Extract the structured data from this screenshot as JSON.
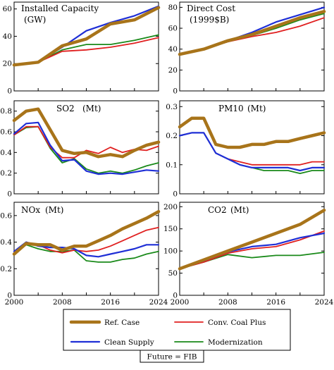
{
  "chart_data": [
    {
      "type": "line",
      "title": "Installed Capacity",
      "unit": "(GW)",
      "x": [
        2000,
        2004,
        2008,
        2012,
        2016,
        2020,
        2024
      ],
      "xlim": [
        2000,
        2024
      ],
      "ylim": [
        0,
        65
      ],
      "yticks": [
        0,
        20,
        40,
        60
      ],
      "ytick_labels": [
        "0",
        "20",
        "40",
        "60"
      ],
      "series": [
        {
          "name": "Ref. Case",
          "color": "#a8741a",
          "values": [
            19,
            21,
            33,
            38,
            49,
            52,
            61
          ]
        },
        {
          "name": "Conv. Coal Plus",
          "color": "#e02020",
          "values": [
            19,
            21,
            29,
            30,
            32,
            35,
            39
          ]
        },
        {
          "name": "Clean Supply",
          "color": "#1f2fd6",
          "values": [
            19,
            21,
            32,
            44,
            50,
            55,
            62
          ]
        },
        {
          "name": "Modernization",
          "color": "#1a8a1a",
          "values": [
            19,
            21,
            30,
            34,
            34,
            37,
            41
          ]
        }
      ]
    },
    {
      "type": "line",
      "title": "Direct Cost",
      "unit": "(1999$B)",
      "x": [
        2000,
        2004,
        2008,
        2012,
        2016,
        2020,
        2024
      ],
      "xlim": [
        2000,
        2024
      ],
      "ylim": [
        0,
        85
      ],
      "yticks": [
        0,
        20,
        40,
        60,
        80
      ],
      "ytick_labels": [
        "0",
        "20",
        "40",
        "60",
        "80"
      ],
      "series": [
        {
          "name": "Ref. Case",
          "color": "#a8741a",
          "values": [
            35,
            40,
            48,
            54,
            62,
            70,
            76
          ]
        },
        {
          "name": "Conv. Coal Plus",
          "color": "#e02020",
          "values": [
            35,
            40,
            47,
            52,
            56,
            62,
            70
          ]
        },
        {
          "name": "Clean Supply",
          "color": "#1f2fd6",
          "values": [
            35,
            40,
            48,
            56,
            66,
            73,
            80
          ]
        },
        {
          "name": "Modernization",
          "color": "#1a8a1a",
          "values": [
            35,
            40,
            47,
            53,
            60,
            68,
            74
          ]
        }
      ]
    },
    {
      "type": "line",
      "title": "SO2",
      "unit": "(Mt)",
      "x": [
        2000,
        2002,
        2004,
        2006,
        2008,
        2010,
        2012,
        2014,
        2016,
        2018,
        2020,
        2022,
        2024
      ],
      "xlim": [
        2000,
        2024
      ],
      "ylim": [
        0,
        0.9
      ],
      "yticks": [
        0,
        0.2,
        0.4,
        0.6,
        0.8
      ],
      "ytick_labels": [
        "0",
        "0.2",
        "0.4",
        "0.6",
        "0.8"
      ],
      "series": [
        {
          "name": "Ref. Case",
          "color": "#a8741a",
          "values": [
            0.71,
            0.8,
            0.82,
            0.62,
            0.42,
            0.39,
            0.4,
            0.36,
            0.38,
            0.36,
            0.42,
            0.47,
            0.5
          ]
        },
        {
          "name": "Conv. Coal Plus",
          "color": "#e02020",
          "values": [
            0.57,
            0.65,
            0.65,
            0.45,
            0.35,
            0.35,
            0.42,
            0.39,
            0.45,
            0.4,
            0.43,
            0.42,
            0.46
          ]
        },
        {
          "name": "Clean Supply",
          "color": "#1f2fd6",
          "values": [
            0.58,
            0.68,
            0.69,
            0.47,
            0.32,
            0.33,
            0.22,
            0.19,
            0.2,
            0.19,
            0.21,
            0.23,
            0.22
          ]
        },
        {
          "name": "Modernization",
          "color": "#1a8a1a",
          "values": [
            0.57,
            0.64,
            0.65,
            0.44,
            0.3,
            0.34,
            0.24,
            0.2,
            0.22,
            0.2,
            0.23,
            0.27,
            0.3
          ]
        }
      ]
    },
    {
      "type": "line",
      "title": "PM10",
      "unit": "(Mt)",
      "x": [
        2000,
        2002,
        2004,
        2006,
        2008,
        2010,
        2012,
        2014,
        2016,
        2018,
        2020,
        2022,
        2024
      ],
      "xlim": [
        2000,
        2024
      ],
      "ylim": [
        0,
        0.32
      ],
      "yticks": [
        0,
        0.1,
        0.2,
        0.3
      ],
      "ytick_labels": [
        "0",
        "0.1",
        "0.2",
        "0.3"
      ],
      "series": [
        {
          "name": "Ref. Case",
          "color": "#a8741a",
          "values": [
            0.23,
            0.26,
            0.26,
            0.17,
            0.16,
            0.16,
            0.17,
            0.17,
            0.18,
            0.18,
            0.19,
            0.2,
            0.21
          ]
        },
        {
          "name": "Conv. Coal Plus",
          "color": "#e02020",
          "values": [
            0.2,
            0.21,
            0.21,
            0.14,
            0.12,
            0.11,
            0.1,
            0.1,
            0.1,
            0.1,
            0.1,
            0.11,
            0.11
          ]
        },
        {
          "name": "Clean Supply",
          "color": "#1f2fd6",
          "values": [
            0.2,
            0.21,
            0.21,
            0.14,
            0.12,
            0.1,
            0.09,
            0.09,
            0.09,
            0.09,
            0.08,
            0.09,
            0.09
          ]
        },
        {
          "name": "Modernization",
          "color": "#1a8a1a",
          "values": [
            0.2,
            0.21,
            0.21,
            0.14,
            0.12,
            0.1,
            0.09,
            0.08,
            0.08,
            0.08,
            0.07,
            0.08,
            0.08
          ]
        }
      ]
    },
    {
      "type": "line",
      "title": "NOx",
      "unit": "(Mt)",
      "x": [
        2000,
        2002,
        2004,
        2006,
        2008,
        2010,
        2012,
        2014,
        2016,
        2018,
        2020,
        2022,
        2024
      ],
      "xlim": [
        2000,
        2024
      ],
      "ylim": [
        0,
        0.7
      ],
      "yticks": [
        0,
        0.2,
        0.4,
        0.6
      ],
      "ytick_labels": [
        "0",
        "0.2",
        "0.4",
        "0.6"
      ],
      "series": [
        {
          "name": "Ref. Case",
          "color": "#a8741a",
          "values": [
            0.31,
            0.39,
            0.38,
            0.38,
            0.34,
            0.37,
            0.37,
            0.41,
            0.45,
            0.5,
            0.54,
            0.58,
            0.63
          ]
        },
        {
          "name": "Conv. Coal Plus",
          "color": "#e02020",
          "values": [
            0.31,
            0.4,
            0.38,
            0.34,
            0.32,
            0.34,
            0.33,
            0.34,
            0.37,
            0.41,
            0.45,
            0.49,
            0.51
          ]
        },
        {
          "name": "Clean Supply",
          "color": "#1f2fd6",
          "values": [
            0.33,
            0.4,
            0.37,
            0.36,
            0.36,
            0.35,
            0.3,
            0.29,
            0.31,
            0.33,
            0.35,
            0.38,
            0.38
          ]
        },
        {
          "name": "Modernization",
          "color": "#1a8a1a",
          "values": [
            0.31,
            0.38,
            0.35,
            0.33,
            0.33,
            0.34,
            0.26,
            0.25,
            0.25,
            0.27,
            0.28,
            0.31,
            0.33
          ]
        }
      ]
    },
    {
      "type": "line",
      "title": "CO2",
      "unit": "(Mt)",
      "x": [
        2000,
        2004,
        2008,
        2012,
        2016,
        2020,
        2024
      ],
      "xlim": [
        2000,
        2024
      ],
      "ylim": [
        0,
        210
      ],
      "yticks": [
        0,
        50,
        100,
        150,
        200
      ],
      "ytick_labels": [
        "0",
        "50",
        "100",
        "150",
        "200"
      ],
      "series": [
        {
          "name": "Ref. Case",
          "color": "#a8741a",
          "values": [
            60,
            80,
            100,
            120,
            140,
            160,
            192
          ]
        },
        {
          "name": "Conv. Coal Plus",
          "color": "#e02020",
          "values": [
            60,
            75,
            95,
            105,
            110,
            125,
            145
          ]
        },
        {
          "name": "Clean Supply",
          "color": "#1f2fd6",
          "values": [
            60,
            78,
            98,
            110,
            115,
            130,
            140
          ]
        },
        {
          "name": "Modernization",
          "color": "#1a8a1a",
          "values": [
            60,
            75,
            92,
            85,
            90,
            90,
            97
          ]
        }
      ]
    }
  ],
  "xtick_labels": [
    "2000",
    "2008",
    "2016",
    "2024"
  ],
  "legend": {
    "entries": [
      {
        "label": "Ref. Case",
        "color": "#a8741a"
      },
      {
        "label": "Conv. Coal Plus",
        "color": "#e02020"
      },
      {
        "label": "Clean Supply",
        "color": "#1f2fd6"
      },
      {
        "label": "Modernization",
        "color": "#1a8a1a"
      }
    ],
    "caption": "Future = FIB"
  }
}
